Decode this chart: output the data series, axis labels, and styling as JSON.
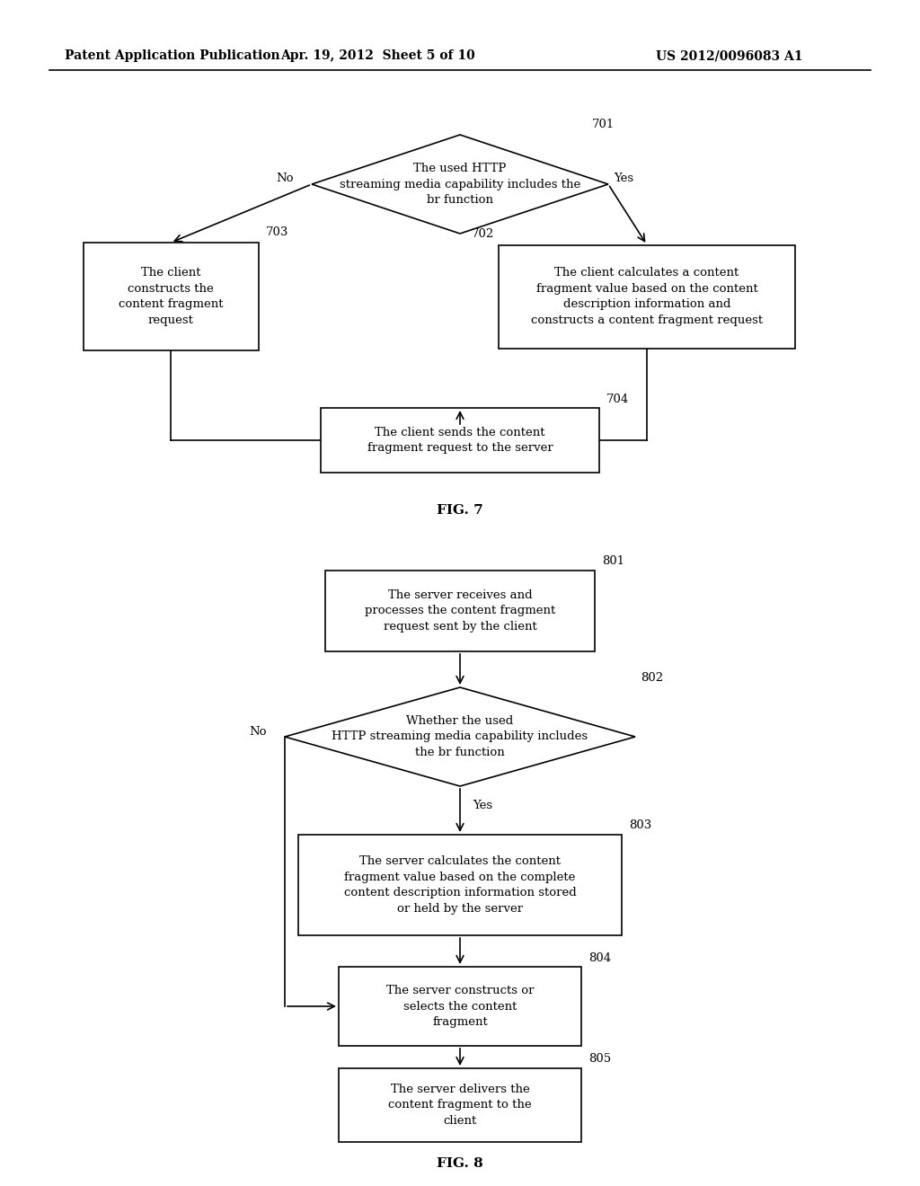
{
  "bg_color": "#ffffff",
  "header_left": "Patent Application Publication",
  "header_mid": "Apr. 19, 2012  Sheet 5 of 10",
  "header_right": "US 2012/0096083 A1",
  "fig7_label": "FIG. 7",
  "fig8_label": "FIG. 8",
  "d701_text": "The used HTTP\nstreaming media capability includes the\nbr function",
  "d701_ref": "701",
  "b703_text": "The client\nconstructs the\ncontent fragment\nrequest",
  "b703_ref": "703",
  "b702_text": "The client calculates a content\nfragment value based on the content\ndescription information and\nconstructs a content fragment request",
  "b702_ref": "702",
  "b704_text": "The client sends the content\nfragment request to the server",
  "b704_ref": "704",
  "b801_text": "The server receives and\nprocesses the content fragment\nrequest sent by the client",
  "b801_ref": "801",
  "d802_text": "Whether the used\nHTTP streaming media capability includes\nthe br function",
  "d802_ref": "802",
  "b803_text": "The server calculates the content\nfragment value based on the complete\ncontent description information stored\nor held by the server",
  "b803_ref": "803",
  "b804_text": "The server constructs or\nselects the content\nfragment",
  "b804_ref": "804",
  "b805_text": "The server delivers the\ncontent fragment to the\nclient",
  "b805_ref": "805",
  "label_no": "No",
  "label_yes": "Yes"
}
